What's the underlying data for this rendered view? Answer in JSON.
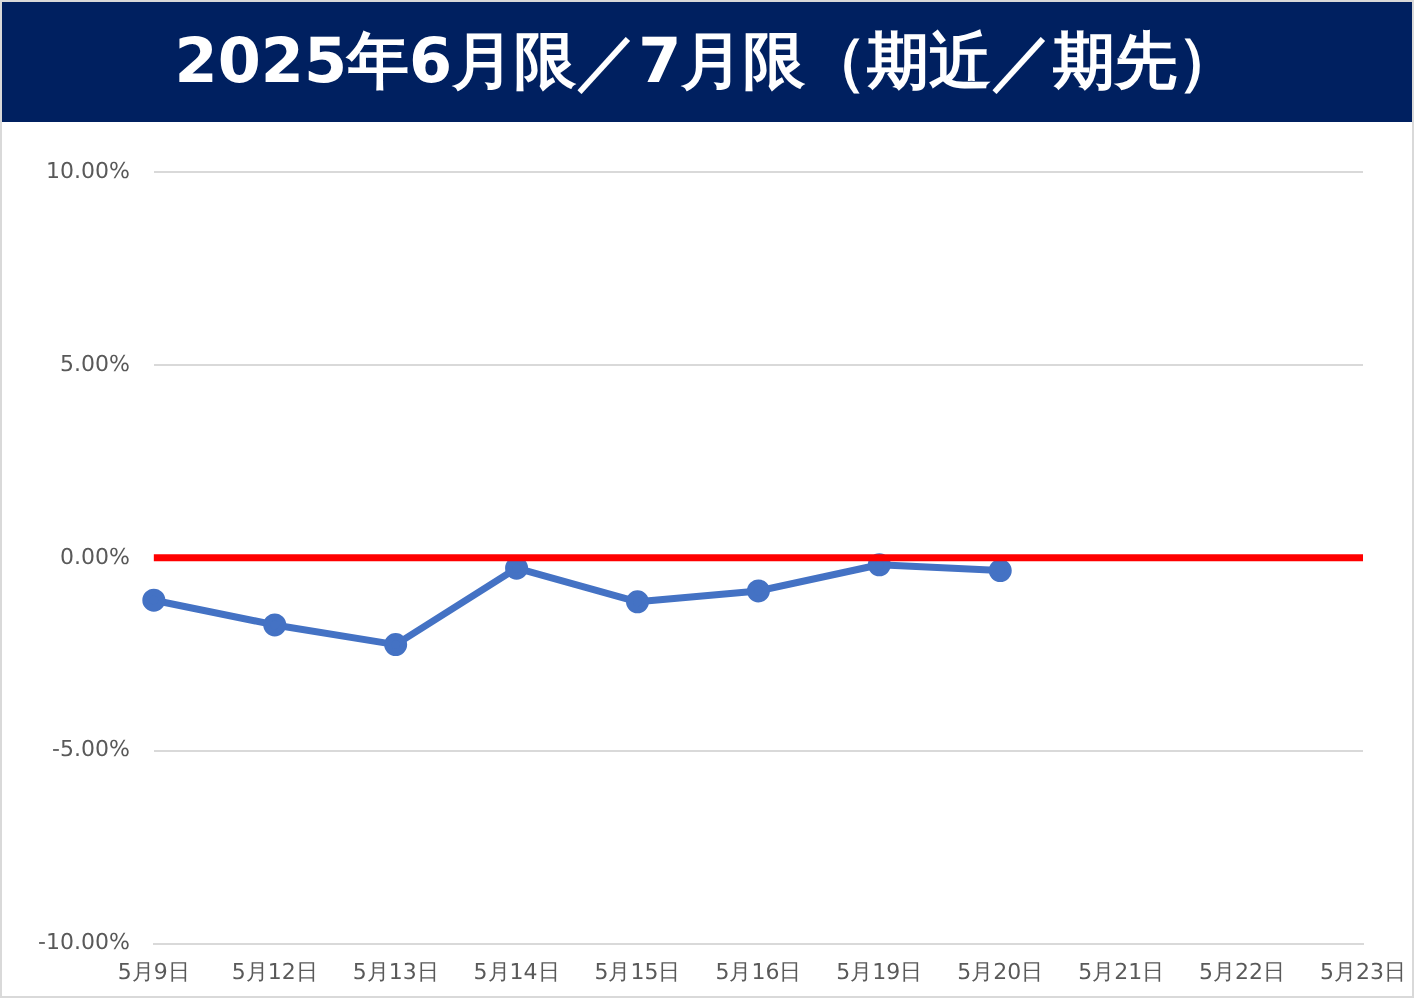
{
  "chart_data": {
    "type": "line",
    "title": "2025年6月限／7月限（期近／期先）",
    "categories": [
      "5月9日",
      "5月12日",
      "5月13日",
      "5月14日",
      "5月15日",
      "5月16日",
      "5月19日",
      "5月20日",
      "5月21日",
      "5月22日",
      "5月23日"
    ],
    "series": [
      {
        "color": "#4472c4",
        "values": [
          -1.1,
          -1.74,
          -2.25,
          -0.27,
          -1.14,
          -0.86,
          -0.18,
          -0.33,
          null,
          null,
          null
        ]
      }
    ],
    "ylim": [
      -10,
      10
    ],
    "yticks": [
      {
        "value": -10,
        "label": "-10.00%"
      },
      {
        "value": -5,
        "label": "-5.00%"
      },
      {
        "value": 0,
        "label": "0.00%"
      },
      {
        "value": 5,
        "label": "5.00%"
      },
      {
        "value": 10,
        "label": "10.00%"
      }
    ],
    "ref_lines": [
      {
        "axis": "y",
        "value": 0,
        "color": "#ff0000"
      }
    ],
    "grid": "y",
    "legend": false,
    "marker": "circle",
    "line_style": "solid"
  }
}
